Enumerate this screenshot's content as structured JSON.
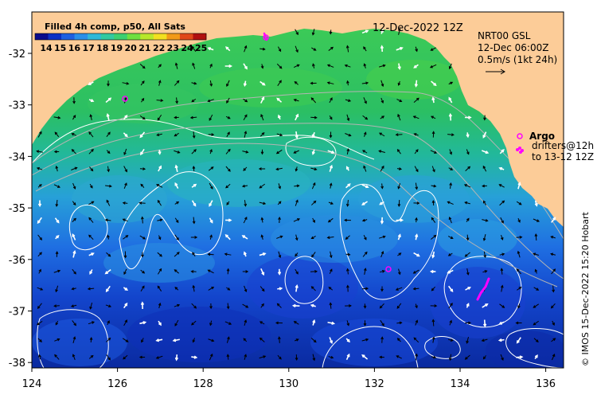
{
  "colorbar": {
    "title": "Filled 4h comp, p50, All Sats",
    "ticks": [
      "14",
      "15",
      "16",
      "17",
      "18",
      "19",
      "20",
      "21",
      "22",
      "23",
      "24",
      "25"
    ],
    "colors": [
      "#0a0a8c",
      "#0b2fc4",
      "#1f5fe0",
      "#2a8fe8",
      "#2fb8d8",
      "#33c9a0",
      "#3cd070",
      "#6fe040",
      "#b8e82a",
      "#f2e020",
      "#f29a18",
      "#e04818",
      "#b01010"
    ]
  },
  "header": {
    "date": "12-Dec-2022 12Z",
    "product": "NRT00 GSL",
    "time": "12-Dec 06:00Z",
    "scale": "0.5m/s (1kt 24h)"
  },
  "legend": {
    "argo": "Argo",
    "drifters": "drifters@12h",
    "drifters_to": "to 13-12 12Z"
  },
  "axes": {
    "x_ticks": [
      "124",
      "126",
      "128",
      "130",
      "132",
      "134",
      "136"
    ],
    "y_ticks": [
      "-32",
      "-33",
      "-34",
      "-35",
      "-36",
      "-37",
      "-38"
    ]
  },
  "credit": "© IMOS 15-Dec-2022 15:20 Hobart",
  "palette": {
    "land": "#fccc98",
    "contour": "#ffffff",
    "isobath": "#b4b4b4",
    "argo": "#ff00ff",
    "arrow_black": "#000000",
    "arrow_white": "#ffffff"
  }
}
